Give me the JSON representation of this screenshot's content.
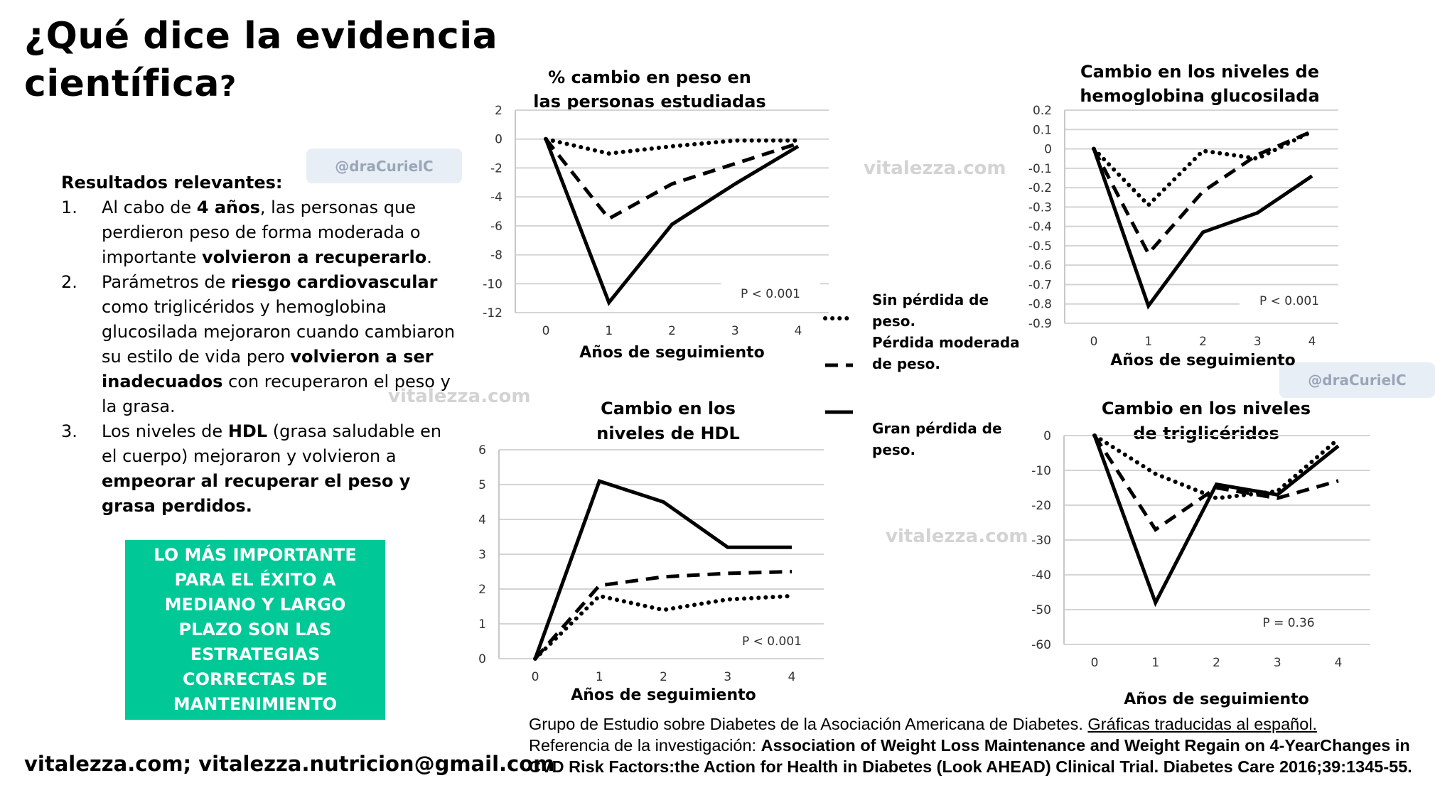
{
  "header": {
    "title_line1": "¿Qué dice la evidencia",
    "title_line2": "científica",
    "title_qmark": "?"
  },
  "badges": {
    "handle": "@draCurielC"
  },
  "watermark": "vitalezza.com",
  "results": {
    "heading": "Resultados relevantes:",
    "items": [
      {
        "num": "1.",
        "parts": [
          [
            "Al cabo de ",
            false
          ],
          [
            "4 años",
            true
          ],
          [
            ", las personas que perdieron peso de forma moderada o importante ",
            false
          ],
          [
            "volvieron a recuperarlo",
            true
          ],
          [
            ".",
            false
          ]
        ]
      },
      {
        "num": "2.",
        "parts": [
          [
            "Parámetros de ",
            false
          ],
          [
            "riesgo cardiovascular",
            true
          ],
          [
            " como triglicéridos y hemoglobina glucosilada mejoraron cuando cambiaron su estilo de vida pero ",
            false
          ],
          [
            "volvieron a ser inadecuados",
            true
          ],
          [
            " con recuperaron el peso y la grasa.",
            false
          ]
        ]
      },
      {
        "num": "3.",
        "parts": [
          [
            "Los niveles de ",
            false
          ],
          [
            "HDL",
            true
          ],
          [
            " (grasa saludable en el cuerpo) mejoraron y volvieron a ",
            false
          ],
          [
            "empeorar al recuperar el peso y grasa perdidos.",
            true
          ]
        ]
      }
    ]
  },
  "callout": {
    "text": "LO MÁS IMPORTANTE PARA EL ÉXITO A MEDIANO Y LARGO PLAZO SON LAS ESTRATEGIAS CORRECTAS DE MANTENIMIENTO",
    "color": "#00c896"
  },
  "footer": {
    "contact": "vitalezza.com; vitalezza.nutricion@gmail.com"
  },
  "reference": {
    "line1_plain": "Grupo de Estudio sobre Diabetes de la Asociación Americana de Diabetes. ",
    "line1_underlined": "Gráficas traducidas al español.",
    "line2_prefix": "Referencia de la investigación: ",
    "line2_bold": "Association of Weight Loss Maintenance and Weight Regain on 4-YearChanges in CVD Risk Factors:the Action for Health in Diabetes (Look AHEAD) Clinical Trial. Diabetes Care 2016;39:1345-55."
  },
  "legend": [
    {
      "label": "Sin pérdida de peso.",
      "style": "dotted"
    },
    {
      "label": "Pérdida moderada de peso.",
      "style": "dashed"
    },
    {
      "label": "Gran pérdida de peso.",
      "style": "solid"
    }
  ],
  "chart_data": [
    {
      "type": "line",
      "title": "% cambio en peso en las personas estudiadas",
      "xlabel": "Años de seguimiento",
      "x": [
        0,
        1,
        2,
        3,
        4
      ],
      "ylim": [
        -12,
        2
      ],
      "yticks": [
        2,
        0,
        -2,
        -4,
        -6,
        -8,
        -10,
        -12
      ],
      "grid": true,
      "annotation": "P < 0.001",
      "series": [
        {
          "name": "Sin pérdida de peso.",
          "style": "dotted",
          "values": [
            0,
            -1.0,
            -0.5,
            -0.1,
            -0.1
          ]
        },
        {
          "name": "Pérdida moderada de peso.",
          "style": "dashed",
          "values": [
            0,
            -5.5,
            -3.1,
            -1.7,
            -0.3
          ]
        },
        {
          "name": "Gran pérdida de peso.",
          "style": "solid",
          "values": [
            0,
            -11.3,
            -5.9,
            -3.1,
            -0.5
          ]
        }
      ]
    },
    {
      "type": "line",
      "title": "Cambio en los niveles de hemoglobina glucosilada",
      "xlabel": "Años de seguimiento",
      "x": [
        0,
        1,
        2,
        3,
        4
      ],
      "ylim": [
        -0.9,
        0.2
      ],
      "yticks": [
        0.2,
        0.1,
        0,
        -0.1,
        -0.2,
        -0.3,
        -0.4,
        -0.5,
        -0.6,
        -0.7,
        -0.8,
        -0.9
      ],
      "grid": true,
      "annotation": "P < 0.001",
      "series": [
        {
          "name": "Sin pérdida de peso.",
          "style": "dotted",
          "values": [
            0,
            -0.29,
            -0.01,
            -0.05,
            0.09
          ]
        },
        {
          "name": "Pérdida moderada de peso.",
          "style": "dashed",
          "values": [
            0,
            -0.54,
            -0.22,
            -0.03,
            0.09
          ]
        },
        {
          "name": "Gran pérdida de peso.",
          "style": "solid",
          "values": [
            0,
            -0.81,
            -0.43,
            -0.33,
            -0.14
          ]
        }
      ]
    },
    {
      "type": "line",
      "title": "Cambio en los niveles de HDL",
      "xlabel": "Años de seguimiento",
      "x": [
        0,
        1,
        2,
        3,
        4
      ],
      "ylim": [
        0,
        6
      ],
      "yticks": [
        6,
        5,
        4,
        3,
        2,
        1,
        0
      ],
      "grid": true,
      "annotation": "P < 0.001",
      "series": [
        {
          "name": "Sin pérdida de peso.",
          "style": "dotted",
          "values": [
            0,
            1.8,
            1.4,
            1.7,
            1.8
          ]
        },
        {
          "name": "Pérdida moderada de peso.",
          "style": "dashed",
          "values": [
            0,
            2.1,
            2.35,
            2.45,
            2.5
          ]
        },
        {
          "name": "Gran pérdida de peso.",
          "style": "solid",
          "values": [
            0,
            5.1,
            4.5,
            3.2,
            3.2
          ]
        }
      ]
    },
    {
      "type": "line",
      "title": "Cambio en los niveles de triglicéridos",
      "xlabel": "Años de seguimiento",
      "x": [
        0,
        1,
        2,
        3,
        4
      ],
      "ylim": [
        -60,
        0
      ],
      "yticks": [
        0,
        -10,
        -20,
        -30,
        -40,
        -50,
        -60
      ],
      "grid": true,
      "annotation": "P = 0.36",
      "series": [
        {
          "name": "Sin pérdida de peso.",
          "style": "dotted",
          "values": [
            0,
            -11,
            -18,
            -16,
            -1
          ]
        },
        {
          "name": "Pérdida moderada de peso.",
          "style": "dashed",
          "values": [
            0,
            -27,
            -15,
            -18,
            -13
          ]
        },
        {
          "name": "Gran pérdida de peso.",
          "style": "solid",
          "values": [
            0,
            -48,
            -14,
            -17,
            -3
          ]
        }
      ]
    }
  ]
}
